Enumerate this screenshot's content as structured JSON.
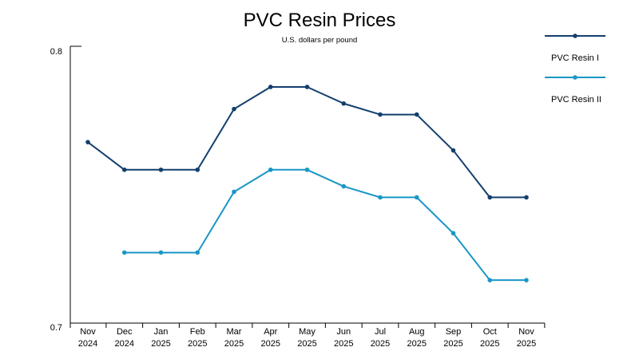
{
  "chart_data": {
    "type": "line",
    "title": "PVC Resin Prices",
    "subtitle": "U.S. dollars per pound",
    "xlabel": "",
    "ylabel": "",
    "ylim": [
      0.7,
      0.8
    ],
    "y_ticks": [
      "0.8",
      "0.7"
    ],
    "y_tick_values": [
      0.8,
      0.7
    ],
    "grid": false,
    "legend_position": "right",
    "categories": [
      {
        "month": "Nov",
        "year": "2024"
      },
      {
        "month": "Dec",
        "year": "2024"
      },
      {
        "month": "Jan",
        "year": "2025"
      },
      {
        "month": "Feb",
        "year": "2025"
      },
      {
        "month": "Mar",
        "year": "2025"
      },
      {
        "month": "Apr",
        "year": "2025"
      },
      {
        "month": "May",
        "year": "2025"
      },
      {
        "month": "Jun",
        "year": "2025"
      },
      {
        "month": "Jul",
        "year": "2025"
      },
      {
        "month": "Aug",
        "year": "2025"
      },
      {
        "month": "Sep",
        "year": "2025"
      },
      {
        "month": "Oct",
        "year": "2025"
      },
      {
        "month": "Nov",
        "year": "2025"
      }
    ],
    "series": [
      {
        "name": "PVC Resin I",
        "color": "#123f6e",
        "values": [
          0.767,
          0.757,
          0.757,
          0.757,
          0.779,
          0.787,
          0.787,
          0.781,
          0.777,
          0.777,
          0.764,
          0.747,
          0.747
        ]
      },
      {
        "name": "PVC Resin II",
        "color": "#1996c6",
        "values": [
          null,
          0.727,
          0.727,
          0.727,
          0.749,
          0.757,
          0.757,
          0.751,
          0.747,
          0.747,
          0.734,
          0.717,
          0.717
        ]
      }
    ]
  }
}
